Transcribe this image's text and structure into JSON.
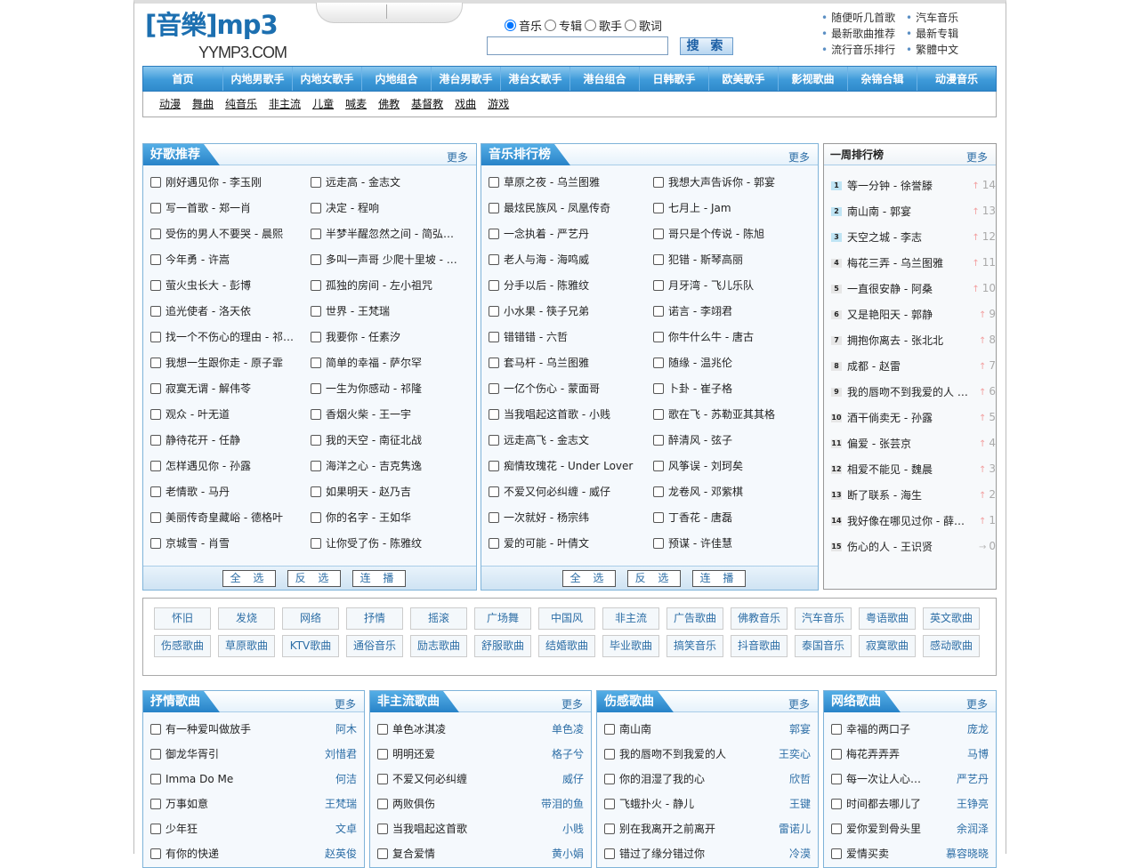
{
  "header": {
    "logo_text": "[音樂]mp3",
    "logo_domain": "YYMP3.COM",
    "search": {
      "types": [
        "音乐",
        "专辑",
        "歌手",
        "歌词"
      ],
      "selected": "音乐",
      "value": "",
      "placeholder": "",
      "button": "搜 索"
    },
    "quick_links": [
      "随便听几首歌",
      "汽车音乐",
      "最新歌曲推荐",
      "最新专辑",
      "流行音乐排行",
      "繁體中文"
    ]
  },
  "nav": [
    "首页",
    "内地男歌手",
    "内地女歌手",
    "内地组合",
    "港台男歌手",
    "港台女歌手",
    "港台组合",
    "日韩歌手",
    "欧美歌手",
    "影视歌曲",
    "杂锦合辑",
    "动漫音乐"
  ],
  "subnav": [
    "动漫",
    "舞曲",
    "纯音乐",
    "非主流",
    "儿童",
    "喊麦",
    "佛教",
    "基督教",
    "戏曲",
    "游戏"
  ],
  "more": "更多",
  "buttons": [
    "全 选",
    "反 选",
    "连 播"
  ],
  "recommend": {
    "title": "好歌推荐",
    "songs": [
      "刚好遇见你 - 李玉刚",
      "远走高 - 金志文",
      "写一首歌 - 郑一肖",
      "决定 - 程响",
      "受伤的男人不要哭 - 晨熙",
      "半梦半醒忽然之间 - 简弘…",
      "今年勇 - 许嵩",
      "多叫一声哥 少爬十里坡 - …",
      "萤火虫长大 - 彭博",
      "孤独的房间 - 左小祖咒",
      "追光使者 - 洛天依",
      "世界 - 王梵瑞",
      "找一个不伤心的理由 - 祁…",
      "我要你 - 任素汐",
      "我想一生跟你走 - 原子霏",
      "简单的幸福 - 萨尔罕",
      "寂寞无谓 - 解伟苓",
      "一生为你感动 - 祁隆",
      "观众 - 叶无道",
      "香烟火柴 - 王一宇",
      "静待花开 - 任静",
      "我的天空 - 南征北战",
      "怎样遇见你 - 孙露",
      "海洋之心 - 吉克隽逸",
      "老情歌 - 马丹",
      "如果明天 - 赵乃吉",
      "美丽传奇皇藏峪 - 德格叶",
      "你的名字 - 王如华",
      "京城雪 - 肖雪",
      "让你受了伤 - 陈雅纹"
    ]
  },
  "chart": {
    "title": "音乐排行榜",
    "songs": [
      "草原之夜 - 乌兰图雅",
      "我想大声告诉你 - 郭宴",
      "最炫民族风 - 凤凰传奇",
      "七月上 - Jam",
      "一念执着 - 严艺丹",
      "哥只是个传说 - 陈旭",
      "老人与海 - 海鸣威",
      "犯错 - 斯琴高丽",
      "分手以后 - 陈雅纹",
      "月牙湾 - 飞儿乐队",
      "小水果 - 筷子兄弟",
      "诺言 - 李翊君",
      "错错错 - 六哲",
      "你牛什么牛 - 唐古",
      "套马杆 - 乌兰图雅",
      "随缘 - 温兆伦",
      "一亿个伤心 - 蒙面哥",
      "卜卦 - 崔子格",
      "当我唱起这首歌 - 小贱",
      "歌在飞 - 苏勒亚其其格",
      "远走高飞 - 金志文",
      "醉清风 - 弦子",
      "痴情玫瑰花 - Under Lover",
      "风筝误 - 刘珂矣",
      "不爱又何必纠缠 - 威仔",
      "龙卷风 - 邓紫棋",
      "一次就好 - 杨宗纬",
      "丁香花 - 唐磊",
      "爱的可能 - 叶倩文",
      "预谋 - 许佳慧"
    ]
  },
  "weekly": {
    "title": "一周排行榜",
    "items": [
      {
        "rank": "1",
        "song": "等一分钟 - 徐誉滕",
        "change": "14",
        "trend": "up"
      },
      {
        "rank": "2",
        "song": "南山南 - 郭宴",
        "change": "13",
        "trend": "up"
      },
      {
        "rank": "3",
        "song": "天空之城 - 李志",
        "change": "12",
        "trend": "up"
      },
      {
        "rank": "4",
        "song": "梅花三弄 - 乌兰图雅",
        "change": "11",
        "trend": "up"
      },
      {
        "rank": "5",
        "song": "一直很安静 - 阿桑",
        "change": "10",
        "trend": "up"
      },
      {
        "rank": "6",
        "song": "又是艳阳天 - 郭静",
        "change": "9",
        "trend": "up"
      },
      {
        "rank": "7",
        "song": "拥抱你离去 - 张北北",
        "change": "8",
        "trend": "up"
      },
      {
        "rank": "8",
        "song": "成都 - 赵雷",
        "change": "7",
        "trend": "up"
      },
      {
        "rank": "9",
        "song": "我的唇吻不到我爱的人 …",
        "change": "6",
        "trend": "up"
      },
      {
        "rank": "10",
        "song": "酒干倘卖无 - 孙露",
        "change": "5",
        "trend": "up"
      },
      {
        "rank": "11",
        "song": "偏爱 - 张芸京",
        "change": "4",
        "trend": "up"
      },
      {
        "rank": "12",
        "song": "相爱不能见 - 魏晨",
        "change": "3",
        "trend": "up"
      },
      {
        "rank": "13",
        "song": "断了联系 - 海生",
        "change": "2",
        "trend": "up"
      },
      {
        "rank": "14",
        "song": "我好像在哪见过你 - 薛…",
        "change": "1",
        "trend": "up"
      },
      {
        "rank": "15",
        "song": "伤心的人 - 王识贤",
        "change": "0",
        "trend": "flat"
      }
    ]
  },
  "tags": [
    "怀旧",
    "发烧",
    "网络",
    "抒情",
    "摇滚",
    "广场舞",
    "中国风",
    "非主流",
    "广告歌曲",
    "佛教音乐",
    "汽车音乐",
    "粤语歌曲",
    "英文歌曲",
    "伤感歌曲",
    "草原歌曲",
    "KTV歌曲",
    "通俗音乐",
    "励志歌曲",
    "舒服歌曲",
    "结婚歌曲",
    "毕业歌曲",
    "搞笑音乐",
    "抖音歌曲",
    "泰国音乐",
    "寂寞歌曲",
    "感动歌曲"
  ],
  "genres": [
    {
      "title": "抒情歌曲",
      "songs": [
        [
          "有一种爱叫做放手",
          "阿木"
        ],
        [
          "御龙华胥引",
          "刘惜君"
        ],
        [
          "Imma Do Me",
          "何洁"
        ],
        [
          "万事如意",
          "王梵瑞"
        ],
        [
          "少年狂",
          "文卓"
        ],
        [
          "有你的快递",
          "赵英俊"
        ]
      ]
    },
    {
      "title": "非主流歌曲",
      "songs": [
        [
          "单色冰淇凌",
          "单色凌"
        ],
        [
          "明明还爱",
          "格子兮"
        ],
        [
          "不爱又何必纠缠",
          "威仔"
        ],
        [
          "两败俱伤",
          "带泪的鱼"
        ],
        [
          "当我唱起这首歌",
          "小贱"
        ],
        [
          "复合爱情",
          "黄小娟"
        ]
      ]
    },
    {
      "title": "伤感歌曲",
      "songs": [
        [
          "南山南",
          "郭宴"
        ],
        [
          "我的唇吻不到我爱的人",
          "王奕心"
        ],
        [
          "你的泪湿了我的心",
          "欣哲"
        ],
        [
          "飞蛾扑火 - 静儿",
          "王键"
        ],
        [
          "别在我离开之前离开",
          "雷诺儿"
        ],
        [
          "错过了缘分错过你",
          "冷漠"
        ]
      ]
    },
    {
      "title": "网络歌曲",
      "songs": [
        [
          "幸福的两口子",
          "庞龙"
        ],
        [
          "梅花弄弄弄",
          "马博"
        ],
        [
          "每一次让人心…",
          "严艺丹"
        ],
        [
          "时间都去哪儿了",
          "王铮亮"
        ],
        [
          "爱你爱到骨头里",
          "余润泽"
        ],
        [
          "爱情买卖",
          "慕容晓晓"
        ]
      ]
    }
  ]
}
